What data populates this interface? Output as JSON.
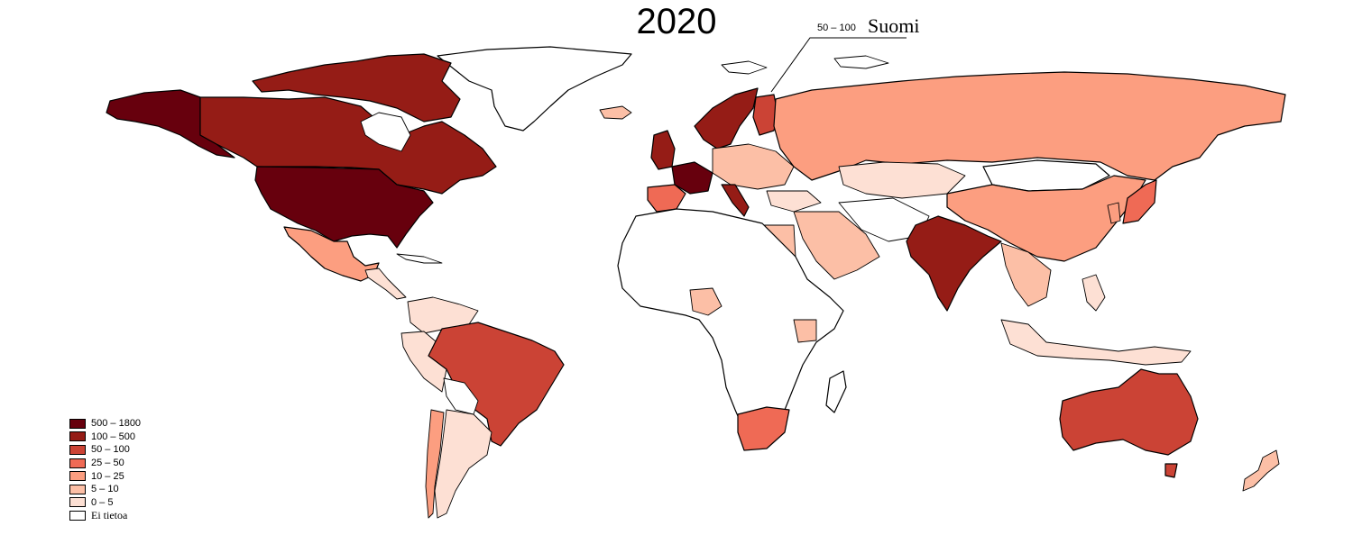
{
  "title": "2020",
  "callout": {
    "value": "50 – 100",
    "name": "Suomi"
  },
  "legend": [
    {
      "label": "500 – 1800",
      "color": "#67000d"
    },
    {
      "label": "100 – 500",
      "color": "#951c16"
    },
    {
      "label": "50 – 100",
      "color": "#cb4335"
    },
    {
      "label": "25 – 50",
      "color": "#ef6a55"
    },
    {
      "label": "10 – 25",
      "color": "#fc9e80"
    },
    {
      "label": "5 – 10",
      "color": "#fcbfa6"
    },
    {
      "label": "0 – 5",
      "color": "#fde0d4"
    },
    {
      "label": "Ei tietoa",
      "color": "#ffffff"
    }
  ]
}
